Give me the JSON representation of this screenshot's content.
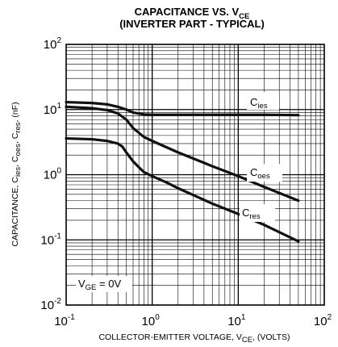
{
  "chart_data": {
    "type": "line",
    "title": {
      "line1_main": "CAPACITANCE VS. V",
      "line1_sub": "CE",
      "line2": "(INVERTER PART - TYPICAL)"
    },
    "xlabel": {
      "main": "COLLECTOR-EMITTER VOLTAGE, V",
      "sub": "CE",
      "suffix": ", (VOLTS)"
    },
    "ylabel": {
      "p1": "CAPACITANCE, C",
      "s1": "ies",
      "p2": ", C",
      "s2": "oes",
      "p3": ", C",
      "s3": "res",
      "p4": ", (nF)"
    },
    "x_scale": "log",
    "y_scale": "log",
    "xlim": [
      0.1,
      100
    ],
    "ylim": [
      0.01,
      100
    ],
    "grid": true,
    "x_ticks": [
      {
        "value": 0.1,
        "base": "10",
        "exp": "-1"
      },
      {
        "value": 1,
        "base": "10",
        "exp": "0"
      },
      {
        "value": 10,
        "base": "10",
        "exp": "1"
      },
      {
        "value": 100,
        "base": "10",
        "exp": "2"
      }
    ],
    "y_ticks": [
      {
        "value": 0.01,
        "base": "10",
        "exp": "-2"
      },
      {
        "value": 0.1,
        "base": "10",
        "exp": "-1"
      },
      {
        "value": 1,
        "base": "10",
        "exp": "0"
      },
      {
        "value": 10,
        "base": "10",
        "exp": "1"
      },
      {
        "value": 100,
        "base": "10",
        "exp": "2"
      }
    ],
    "series": [
      {
        "name_main": "C",
        "name_sub": "ies",
        "x": [
          0.1,
          0.2,
          0.3,
          0.4,
          0.5,
          0.6,
          0.8,
          1,
          2,
          5,
          10,
          20,
          50
        ],
        "y": [
          13.0,
          12.6,
          12.0,
          11.0,
          10.0,
          9.0,
          8.4,
          8.3,
          8.3,
          8.3,
          8.3,
          8.3,
          8.2
        ]
      },
      {
        "name_main": "C",
        "name_sub": "oes",
        "x": [
          0.1,
          0.2,
          0.3,
          0.4,
          0.5,
          0.6,
          0.8,
          1,
          2,
          5,
          10,
          20,
          50
        ],
        "y": [
          11.0,
          10.5,
          9.8,
          8.7,
          7.0,
          5.2,
          3.8,
          3.3,
          2.2,
          1.35,
          0.95,
          0.65,
          0.4
        ]
      },
      {
        "name_main": "C",
        "name_sub": "res",
        "x": [
          0.1,
          0.2,
          0.3,
          0.4,
          0.45,
          0.5,
          0.6,
          0.7,
          0.8,
          1,
          1.5,
          2,
          5,
          10,
          20,
          50
        ],
        "y": [
          3.6,
          3.5,
          3.3,
          3.0,
          2.7,
          2.2,
          1.6,
          1.3,
          1.1,
          0.95,
          0.75,
          0.62,
          0.36,
          0.25,
          0.17,
          0.095
        ]
      }
    ],
    "annotations": [
      {
        "id": "vge",
        "main": "V",
        "sub": "GE",
        "suffix": " = 0V"
      }
    ]
  }
}
